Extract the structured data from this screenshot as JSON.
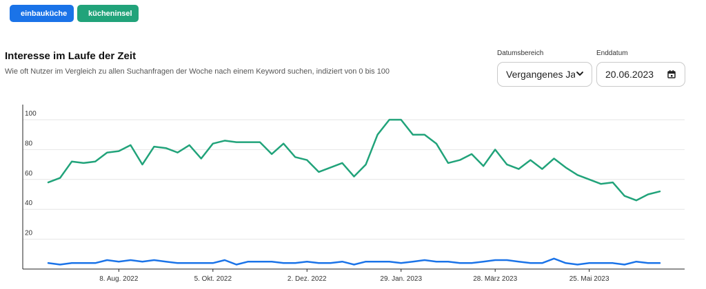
{
  "filters": [
    {
      "label": "einbauküche",
      "color": "#1a73e8"
    },
    {
      "label": "kücheninsel",
      "color": "#21a37a"
    }
  ],
  "remove_icon": "close-icon",
  "header": {
    "title": "Interesse im Laufe der Zeit",
    "subtitle": "Wie oft Nutzer im Vergleich zu allen Suchanfragen der Woche nach einem Keyword suchen, indiziert von 0 bis 100"
  },
  "controls": {
    "range_label": "Datumsbereich",
    "range_value": "Vergangenes Jahr",
    "end_label": "Enddatum",
    "end_value": "20.06.2023"
  },
  "chart_data": {
    "type": "line",
    "title": "",
    "xlabel": "",
    "ylabel": "",
    "ylim": [
      0,
      100
    ],
    "yticks": [
      20,
      40,
      60,
      80,
      100
    ],
    "grid": true,
    "x_ticks": [
      "8. Aug. 2022",
      "5. Okt. 2022",
      "2. Dez. 2022",
      "29. Jan. 2023",
      "28. März 2023",
      "25. Mai 2023"
    ],
    "x_tick_index": [
      6,
      14,
      22,
      30,
      38,
      46
    ],
    "series": [
      {
        "name": "kücheninsel",
        "color": "#21a37a",
        "values": [
          58,
          61,
          72,
          71,
          72,
          78,
          79,
          83,
          70,
          82,
          81,
          78,
          83,
          74,
          84,
          86,
          85,
          85,
          85,
          77,
          84,
          75,
          73,
          65,
          68,
          71,
          62,
          70,
          90,
          100,
          100,
          90,
          90,
          84,
          71,
          73,
          77,
          69,
          80,
          70,
          67,
          73,
          67,
          74,
          68,
          63,
          60,
          57,
          58,
          49,
          46,
          50,
          52
        ]
      },
      {
        "name": "einbauküche",
        "color": "#1a73e8",
        "values": [
          4,
          3,
          4,
          4,
          4,
          6,
          5,
          6,
          5,
          6,
          5,
          4,
          4,
          4,
          4,
          6,
          3,
          5,
          5,
          5,
          4,
          4,
          5,
          4,
          4,
          5,
          3,
          5,
          5,
          5,
          4,
          5,
          6,
          5,
          5,
          4,
          4,
          5,
          6,
          6,
          5,
          4,
          4,
          7,
          4,
          3,
          4,
          4,
          4,
          3,
          5,
          4,
          4
        ]
      }
    ]
  }
}
